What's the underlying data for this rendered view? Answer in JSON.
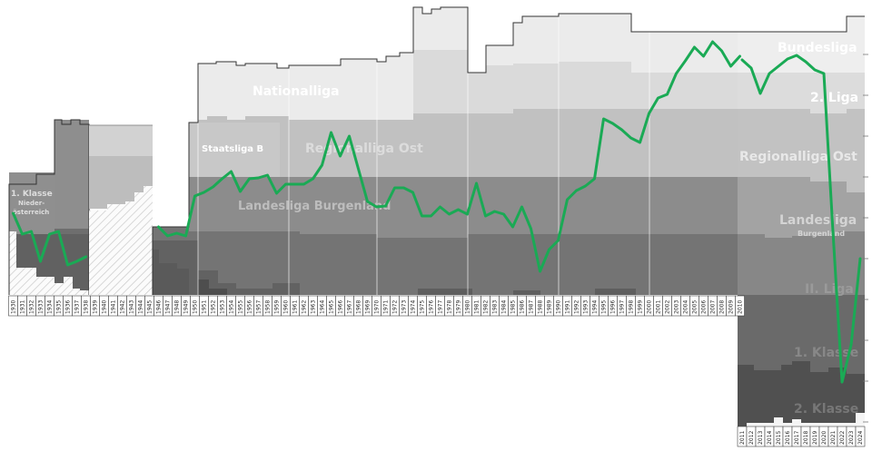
{
  "colors": {
    "line": "#1aaa55",
    "tier1": "#e9e9e9",
    "tier2": "#d2d2d2",
    "tier3": "#b9b9b9",
    "tier4": "#8c8c8c",
    "tier5": "#777777",
    "tier6": "#676767",
    "tier7": "#555555",
    "tier8": "#4a4a4a",
    "hatch": "#cfcfcf"
  },
  "chart_data": {
    "type": "line",
    "title": "",
    "xlabel": "",
    "ylabel": "",
    "y_inverted": true,
    "league_labels": [
      {
        "name": "1. Klasse Nieder-österreich",
        "lines": [
          "1. Klasse",
          "Nieder-",
          "österreich"
        ]
      },
      {
        "name": "Nationalliga",
        "lines": [
          "Nationalliga"
        ]
      },
      {
        "name": "Staatsliga B",
        "lines": [
          "Staatsliga B"
        ]
      },
      {
        "name": "Regionalliga Ost",
        "lines": [
          "Regionalliga Ost"
        ]
      },
      {
        "name": "Landesliga Burgenland",
        "lines": [
          "Landesliga Burgenland"
        ]
      },
      {
        "name": "Bundesliga",
        "lines": [
          "Bundesliga"
        ]
      },
      {
        "name": "2. Liga",
        "lines": [
          "2. Liga"
        ]
      },
      {
        "name": "Regionalliga Ost",
        "lines": [
          "Regionalliga Ost"
        ]
      },
      {
        "name": "Landesliga Burgenland",
        "lines": [
          "Landesliga",
          "Burgenland"
        ]
      },
      {
        "name": "II. Liga",
        "lines": [
          "II. Liga"
        ]
      },
      {
        "name": "1. Klasse",
        "lines": [
          "1. Klasse"
        ]
      },
      {
        "name": "2. Klasse",
        "lines": [
          "2. Klasse"
        ]
      }
    ],
    "years_1": [
      "1930",
      "1931",
      "1932",
      "1933",
      "1934",
      "1935",
      "1936",
      "1937",
      "1938",
      "1939",
      "1940",
      "1941",
      "1942",
      "1943",
      "1944",
      "1945",
      "1946",
      "1947",
      "1948",
      "1949",
      "1950",
      "1951",
      "1952",
      "1953",
      "1954",
      "1955",
      "1956",
      "1957",
      "1958",
      "1959",
      "1960",
      "1961",
      "1962",
      "1963",
      "1964",
      "1965",
      "1966",
      "1967",
      "1968",
      "1969",
      "1970",
      "1971",
      "1972",
      "1973",
      "1974",
      "1975",
      "1976",
      "1977",
      "1978",
      "1979",
      "1980",
      "1981",
      "1982",
      "1983",
      "1984",
      "1985",
      "1986",
      "1987",
      "1988",
      "1989",
      "1990",
      "1991",
      "1992",
      "1993",
      "1994",
      "1995",
      "1996",
      "1997",
      "1998",
      "1999",
      "2000",
      "2001",
      "2002",
      "2003",
      "2004",
      "2005",
      "2006",
      "2007",
      "2008",
      "2009",
      "2010"
    ],
    "years_2": [
      "2011",
      "2012",
      "2013",
      "2014",
      "2015",
      "2016",
      "2017",
      "2018",
      "2019",
      "2020",
      "2021",
      "2022",
      "2023",
      "2024"
    ],
    "series": [
      {
        "x": [
          "1930",
          "1931",
          "1932",
          "1933",
          "1934",
          "1935",
          "1936",
          "1937",
          "1938"
        ],
        "y": [
          235,
          258,
          255,
          288,
          258,
          255,
          292,
          288,
          283
        ]
      },
      {
        "x": [
          "1946",
          "1947",
          "1948",
          "1949",
          "1950",
          "1951",
          "1952",
          "1953",
          "1954",
          "1955",
          "1956",
          "1957",
          "1958",
          "1959",
          "1960",
          "1961",
          "1962",
          "1963",
          "1964",
          "1965",
          "1966",
          "1967",
          "1968",
          "1969",
          "1970",
          "1971",
          "1972",
          "1973",
          "1974",
          "1975",
          "1976",
          "1977",
          "1978",
          "1979",
          "1980",
          "1981",
          "1982",
          "1983",
          "1984",
          "1985",
          "1986",
          "1987",
          "1988",
          "1989",
          "1990",
          "1991",
          "1992",
          "1993",
          "1994",
          "1995",
          "1996",
          "1997",
          "1998",
          "1999",
          "2000",
          "2001",
          "2002",
          "2003",
          "2004",
          "2005",
          "2006",
          "2007",
          "2008",
          "2009",
          "2010"
        ],
        "y": [
          250,
          260,
          257,
          260,
          216,
          212,
          206,
          197,
          189,
          211,
          197,
          196,
          193,
          213,
          203,
          203,
          203,
          197,
          182,
          146,
          172,
          150,
          186,
          222,
          228,
          227,
          207,
          207,
          212,
          238,
          238,
          228,
          236,
          231,
          236,
          202,
          238,
          233,
          236,
          250,
          228,
          252,
          299,
          275,
          265,
          220,
          210,
          205,
          197,
          131,
          136,
          143,
          152,
          157,
          125,
          108,
          104,
          81,
          67,
          52,
          62,
          46,
          56,
          73,
          62
        ]
      },
      {
        "x": [
          "2011",
          "2012",
          "2013",
          "2014",
          "2015",
          "2016",
          "2017",
          "2018",
          "2019",
          "2020",
          "2021",
          "2022",
          "2023",
          "2024"
        ],
        "y": [
          66,
          75,
          103,
          81,
          73,
          65,
          61,
          68,
          77,
          81,
          255,
          421,
          380,
          285
        ]
      }
    ]
  }
}
